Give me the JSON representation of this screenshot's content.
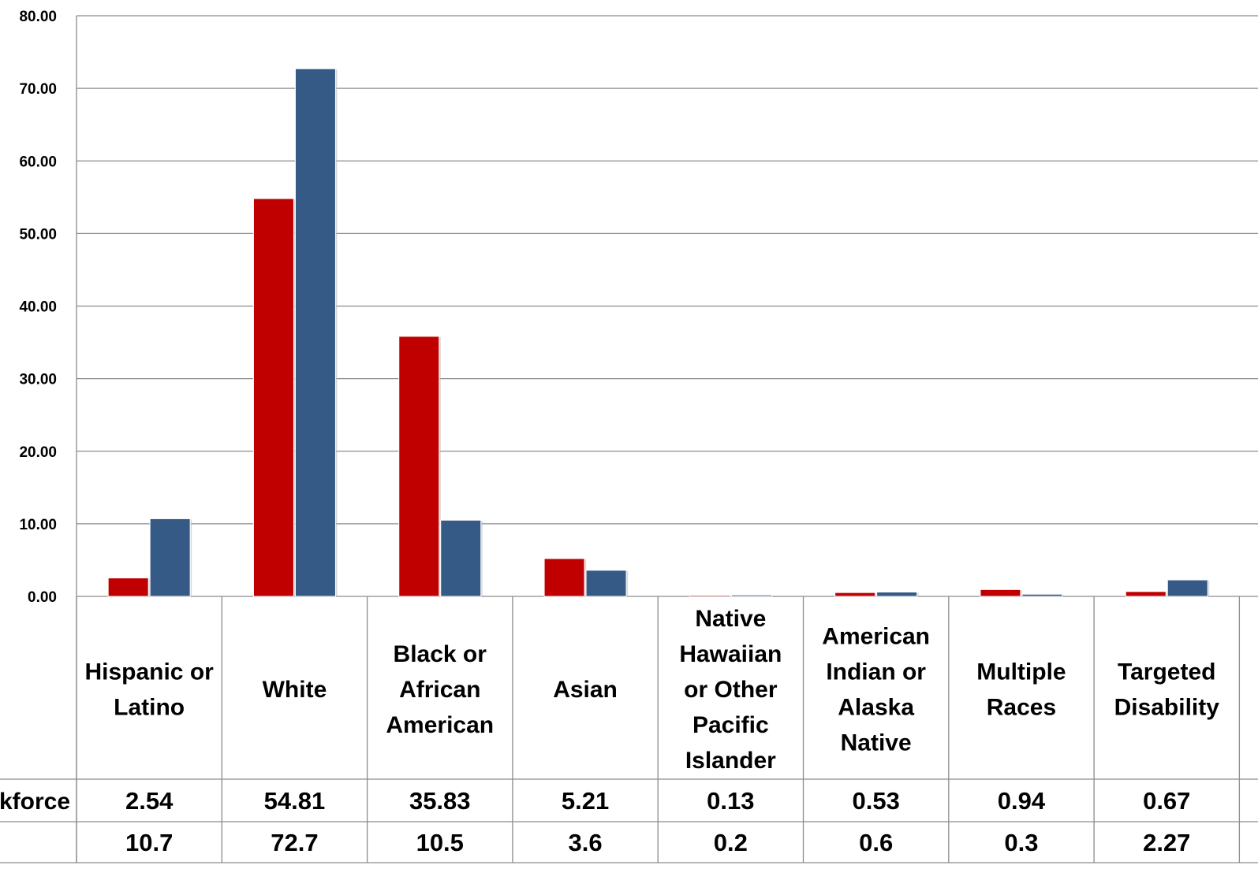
{
  "chart_data": {
    "type": "bar",
    "categories": [
      [
        "Hispanic or",
        "Latino"
      ],
      [
        "White"
      ],
      [
        "Black or",
        "African",
        "American"
      ],
      [
        "Asian"
      ],
      [
        "Native",
        "Hawaiian",
        "or Other",
        "Pacific",
        "Islander"
      ],
      [
        "American",
        "Indian or",
        "Alaska",
        "Native"
      ],
      [
        "Multiple",
        "Races"
      ],
      [
        "Targeted",
        "Disability"
      ]
    ],
    "series": [
      {
        "row_label": "kforce",
        "color": "#c00000",
        "values": [
          2.54,
          54.81,
          35.83,
          5.21,
          0.13,
          0.53,
          0.94,
          0.67
        ],
        "display": [
          "2.54",
          "54.81",
          "35.83",
          "5.21",
          "0.13",
          "0.53",
          "0.94",
          "0.67"
        ]
      },
      {
        "row_label": "",
        "color": "#355a86",
        "values": [
          10.7,
          72.7,
          10.5,
          3.6,
          0.2,
          0.6,
          0.3,
          2.27
        ],
        "display": [
          "10.7",
          "72.7",
          "10.5",
          "3.6",
          "0.2",
          "0.6",
          "0.3",
          "2.27"
        ]
      }
    ],
    "yticks": [
      "0.00",
      "10.00",
      "20.00",
      "30.00",
      "40.00",
      "50.00",
      "60.00",
      "70.00",
      "80.00"
    ],
    "ylim": [
      0,
      80
    ],
    "grid": true,
    "legend": "data table below chart"
  }
}
